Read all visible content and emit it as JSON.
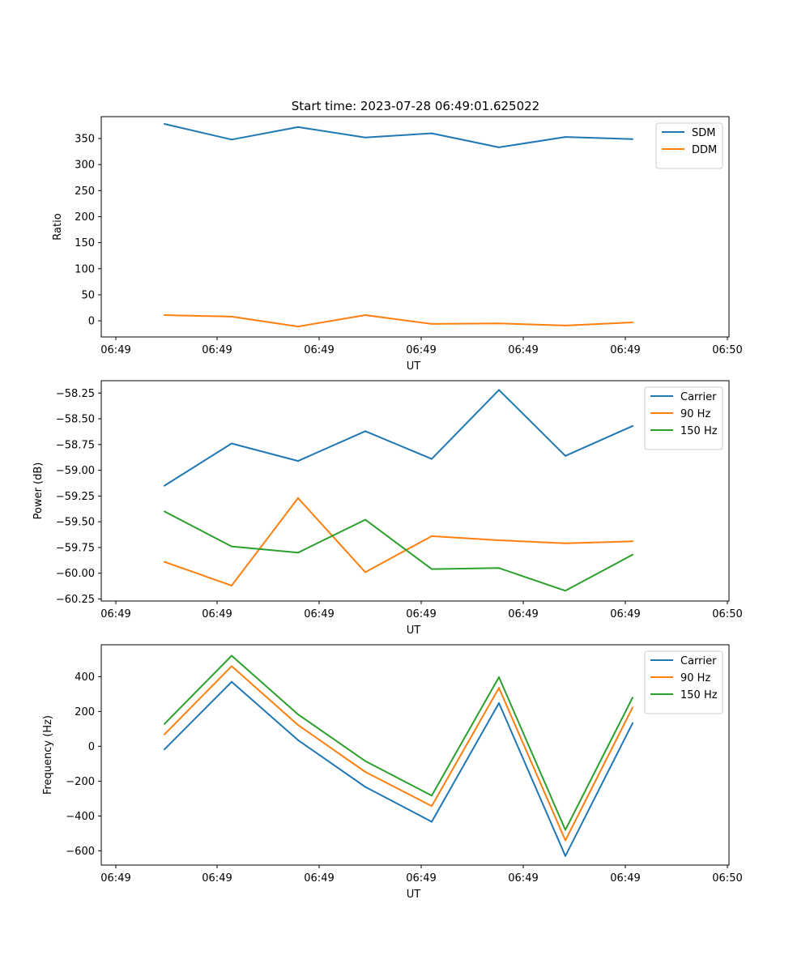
{
  "figure_title": "Start time: 2023-07-28 06:49:01.625022",
  "colors": {
    "blue": "#1f77b4",
    "orange": "#ff7f0e",
    "green": "#2ca02c"
  },
  "chart_data": [
    {
      "type": "line",
      "xlabel": "UT",
      "ylabel": "Ratio",
      "x_tick_labels": [
        "06:49",
        "06:49",
        "06:49",
        "06:49",
        "06:49",
        "06:49",
        "06:50"
      ],
      "yticks": [
        0,
        50,
        100,
        150,
        200,
        250,
        300,
        350
      ],
      "ylim": [
        -31,
        392
      ],
      "legend": "top-right",
      "series": [
        {
          "name": "SDM",
          "color": "#1f77b4",
          "values": [
            378,
            348,
            372,
            352,
            360,
            333,
            353,
            349
          ]
        },
        {
          "name": "DDM",
          "color": "#ff7f0e",
          "values": [
            11,
            8,
            -11,
            11,
            -6,
            -5,
            -9,
            -3
          ]
        }
      ]
    },
    {
      "type": "line",
      "xlabel": "UT",
      "ylabel": "Power (dB)",
      "x_tick_labels": [
        "06:49",
        "06:49",
        "06:49",
        "06:49",
        "06:49",
        "06:49",
        "06:50"
      ],
      "yticks": [
        -60.25,
        -60.0,
        -59.75,
        -59.5,
        -59.25,
        -59.0,
        -58.75,
        -58.5,
        -58.25
      ],
      "ytick_labels": [
        "−60.25",
        "−60.00",
        "−59.75",
        "−59.50",
        "−59.25",
        "−59.00",
        "−58.75",
        "−58.50",
        "−58.25"
      ],
      "ylim": [
        -60.27,
        -58.13
      ],
      "legend": "top-right",
      "series": [
        {
          "name": "Carrier",
          "color": "#1f77b4",
          "values": [
            -59.15,
            -58.74,
            -58.91,
            -58.62,
            -58.89,
            -58.22,
            -58.86,
            -58.57
          ]
        },
        {
          "name": "90 Hz",
          "color": "#ff7f0e",
          "values": [
            -59.89,
            -60.12,
            -59.27,
            -59.99,
            -59.64,
            -59.68,
            -59.71,
            -59.69
          ]
        },
        {
          "name": "150 Hz",
          "color": "#2ca02c",
          "values": [
            -59.4,
            -59.74,
            -59.8,
            -59.48,
            -59.96,
            -59.95,
            -60.17,
            -59.82
          ]
        }
      ]
    },
    {
      "type": "line",
      "xlabel": "UT",
      "ylabel": "Frequency (Hz)",
      "x_tick_labels": [
        "06:49",
        "06:49",
        "06:49",
        "06:49",
        "06:49",
        "06:49",
        "06:50"
      ],
      "yticks": [
        -600,
        -400,
        -200,
        0,
        200,
        400
      ],
      "ytick_labels": [
        "−600",
        "−400",
        "−200",
        "0",
        "200",
        "400"
      ],
      "ylim": [
        -682,
        583
      ],
      "legend": "top-right",
      "series": [
        {
          "name": "Carrier",
          "color": "#1f77b4",
          "values": [
            -18,
            370,
            35,
            -233,
            -433,
            248,
            -630,
            133
          ]
        },
        {
          "name": "90 Hz",
          "color": "#ff7f0e",
          "values": [
            68,
            460,
            122,
            -147,
            -343,
            335,
            -540,
            223
          ]
        },
        {
          "name": "150 Hz",
          "color": "#2ca02c",
          "values": [
            128,
            520,
            183,
            -85,
            -283,
            397,
            -480,
            280
          ]
        }
      ]
    }
  ]
}
